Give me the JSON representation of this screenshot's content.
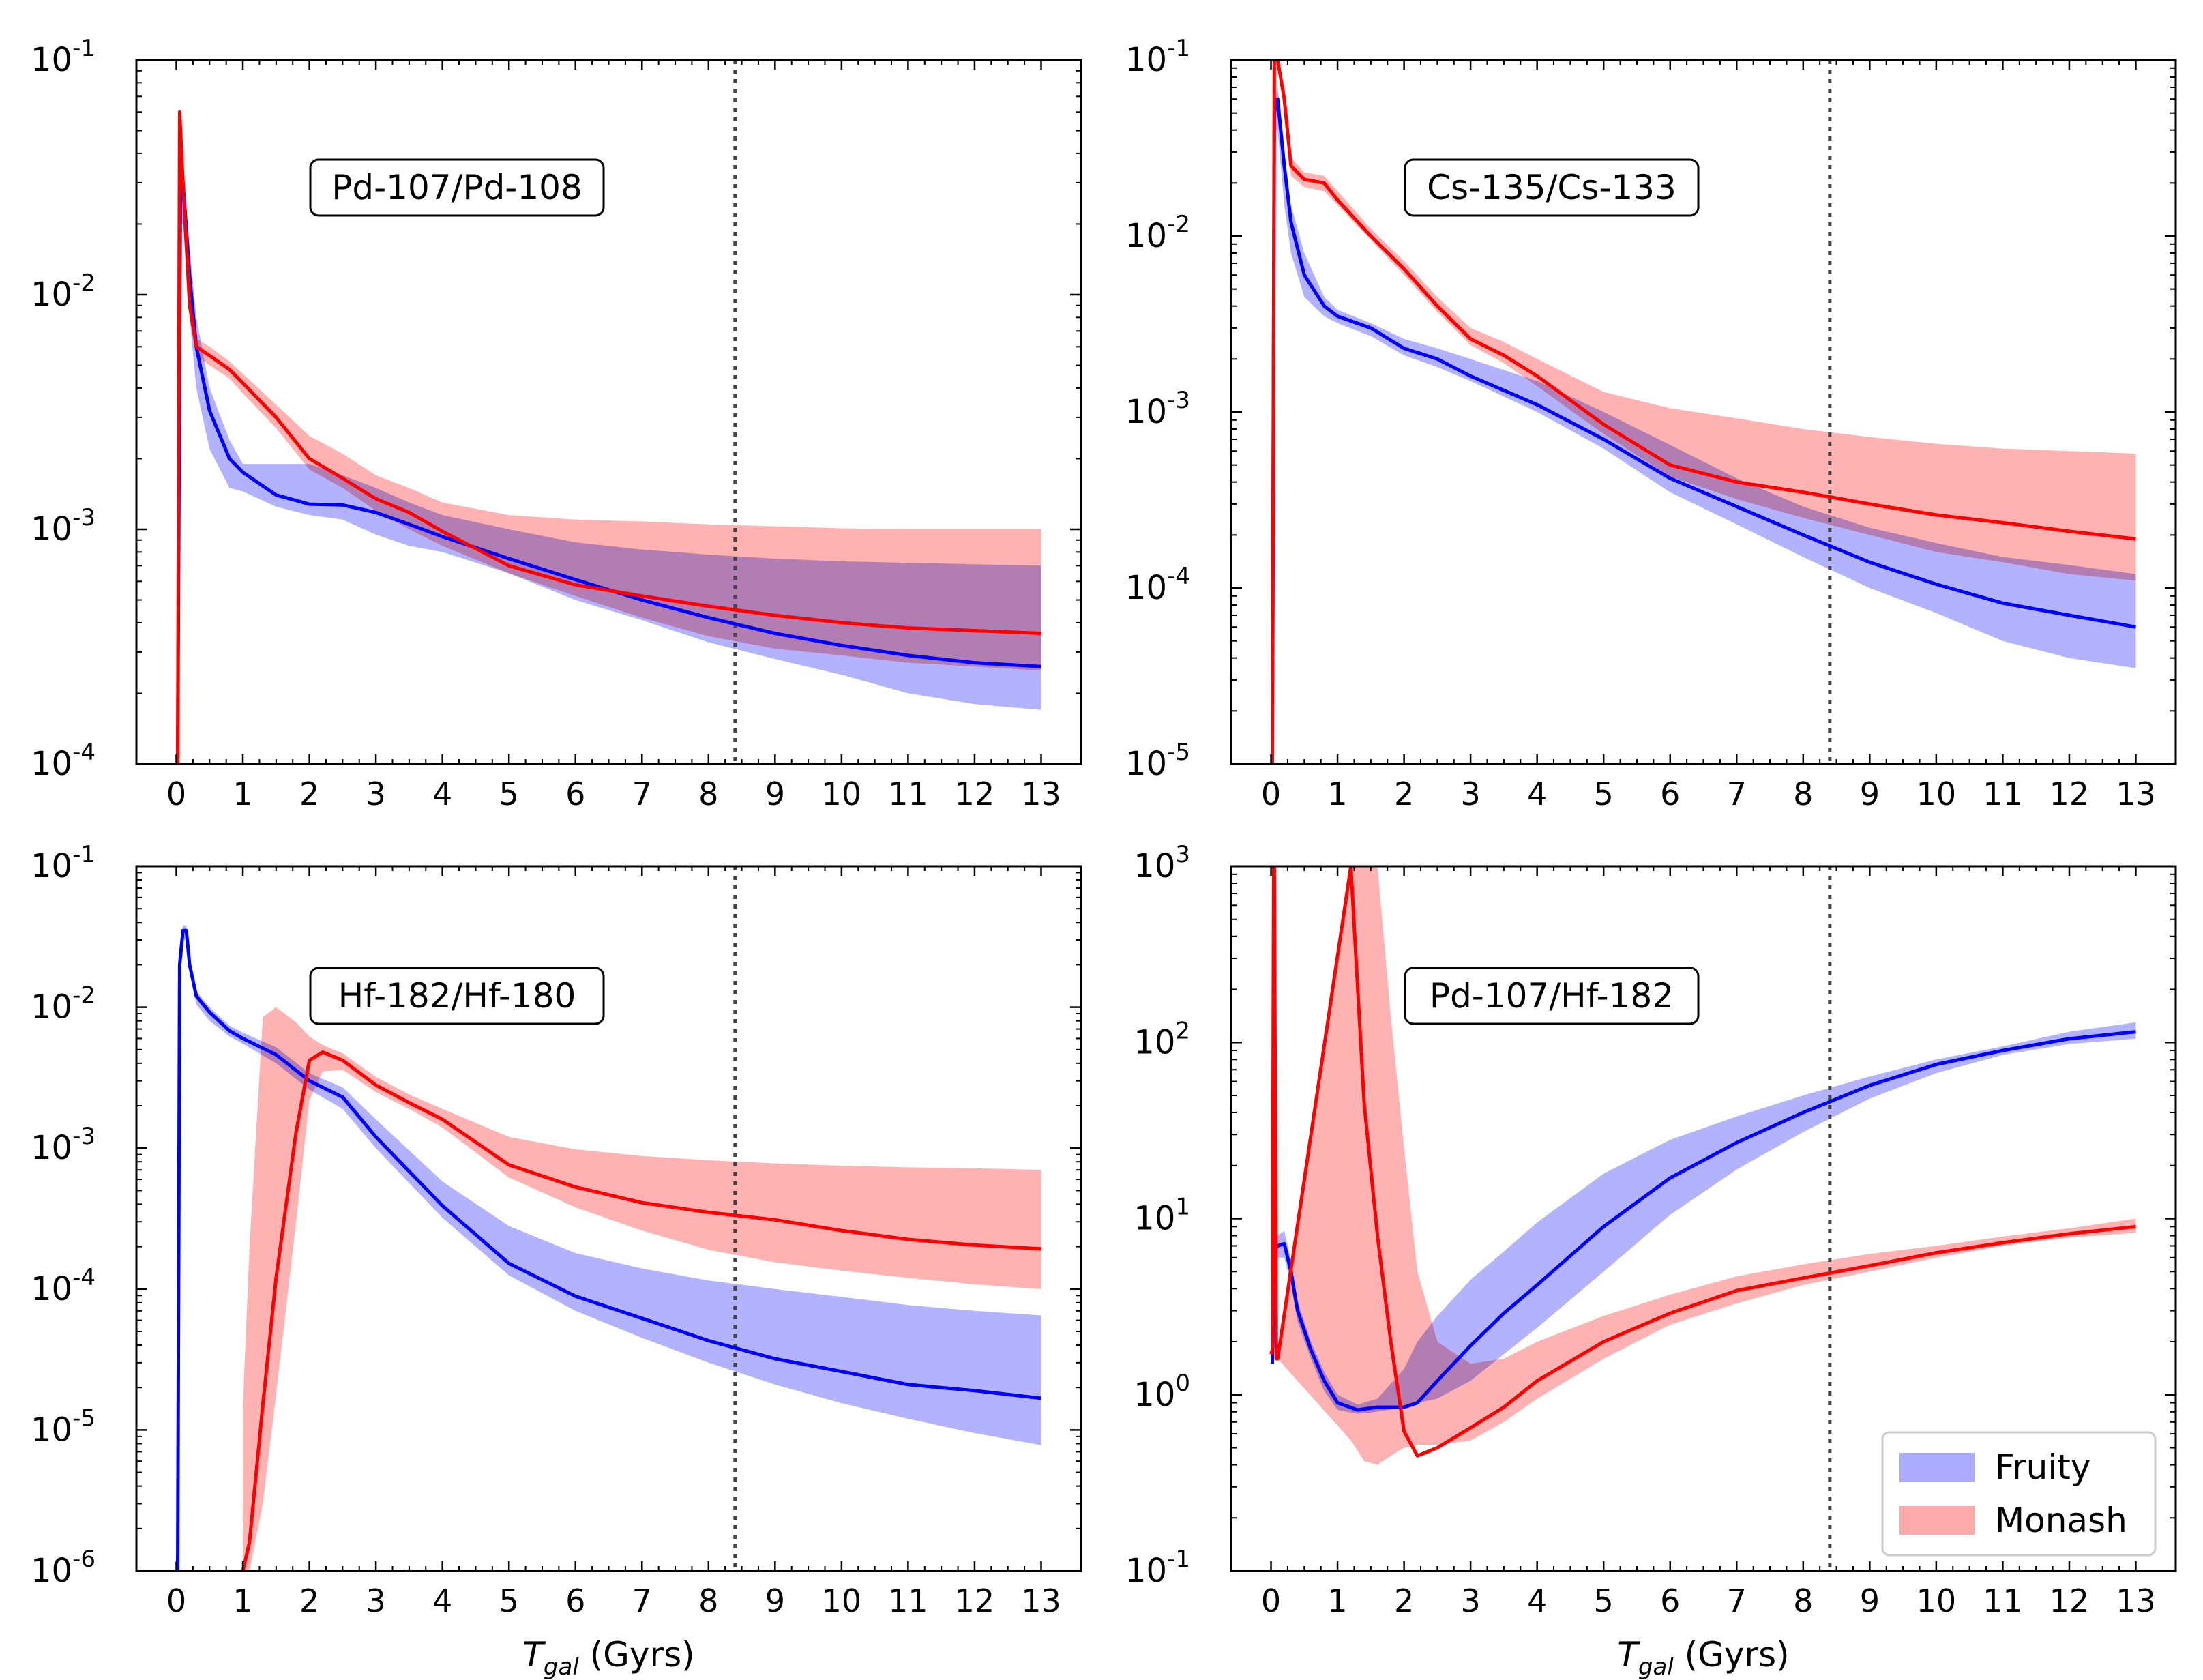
{
  "figure": {
    "legend": [
      {
        "label": "Fruity",
        "color": "#0000ff",
        "band_color": "#aaaaff"
      },
      {
        "label": "Monash",
        "color": "#ff0000",
        "band_color": "#ffaaaa"
      }
    ],
    "vline_x": 8.4,
    "x_ticks": [
      0,
      1,
      2,
      3,
      4,
      5,
      6,
      7,
      8,
      9,
      10,
      11,
      12,
      13
    ],
    "xlabel_main": "T",
    "xlabel_sub": "gal",
    "xlabel_unit": " (Gyrs)"
  },
  "chart_data": [
    {
      "type": "line",
      "title": "Pd-107/Pd-108",
      "xlabel": "",
      "ylabel": "",
      "xlim": [
        -0.6,
        13.6
      ],
      "ylim_exp": [
        -4,
        -1
      ],
      "yscale": "log",
      "y_tick_labels": [
        "10",
        "10",
        "10",
        "10"
      ],
      "y_tick_exps": [
        "-4",
        "-3",
        "-2",
        "-1"
      ],
      "series": [
        {
          "name": "Fruity",
          "x": [
            0.02,
            0.06,
            0.1,
            0.2,
            0.3,
            0.5,
            0.8,
            1.0,
            1.5,
            2.0,
            2.5,
            3.0,
            3.5,
            4.0,
            5.0,
            6.0,
            7.0,
            8.0,
            9.0,
            10.0,
            11.0,
            12.0,
            13.0
          ],
          "y": [
            0.0001,
            0.025,
            0.03,
            0.012,
            0.006,
            0.0032,
            0.002,
            0.00175,
            0.0014,
            0.00128,
            0.00127,
            0.00118,
            0.00105,
            0.00093,
            0.00075,
            0.00061,
            0.0005,
            0.00042,
            0.00036,
            0.00032,
            0.00029,
            0.00027,
            0.00026
          ],
          "band_low": [
            0.0001,
            0.02,
            0.02,
            0.008,
            0.004,
            0.0022,
            0.0015,
            0.00145,
            0.00125,
            0.00115,
            0.0011,
            0.00095,
            0.00085,
            0.0008,
            0.00065,
            0.0005,
            0.00041,
            0.00033,
            0.00028,
            0.00024,
            0.0002,
            0.00018,
            0.00017
          ],
          "band_high": [
            0.0001,
            0.035,
            0.035,
            0.016,
            0.008,
            0.004,
            0.0024,
            0.0019,
            0.0019,
            0.0019,
            0.0017,
            0.0015,
            0.0013,
            0.00115,
            0.001,
            0.00088,
            0.00082,
            0.00078,
            0.00075,
            0.00073,
            0.00072,
            0.00071,
            0.0007
          ]
        },
        {
          "name": "Monash",
          "x": [
            0.0,
            0.02,
            0.05,
            0.1,
            0.2,
            0.3,
            0.5,
            0.8,
            1.0,
            1.5,
            2.0,
            2.5,
            3.0,
            3.5,
            4.0,
            5.0,
            6.0,
            7.0,
            8.0,
            9.0,
            10.0,
            11.0,
            12.0,
            13.0
          ],
          "y": [
            0.0001,
            0.0001,
            0.06,
            0.03,
            0.009,
            0.006,
            0.0055,
            0.0048,
            0.0042,
            0.003,
            0.002,
            0.00165,
            0.00135,
            0.00118,
            0.00098,
            0.0007,
            0.00058,
            0.00052,
            0.00047,
            0.00043,
            0.0004,
            0.00038,
            0.00037,
            0.00036
          ],
          "band_low": [
            0.0001,
            0.0001,
            0.05,
            0.025,
            0.008,
            0.0055,
            0.005,
            0.0044,
            0.0038,
            0.0027,
            0.0018,
            0.0015,
            0.0012,
            0.001,
            0.00085,
            0.00065,
            0.00052,
            0.00042,
            0.00035,
            0.00031,
            0.00029,
            0.00027,
            0.00026,
            0.00025
          ],
          "band_high": [
            0.0001,
            0.0001,
            0.065,
            0.032,
            0.01,
            0.0065,
            0.006,
            0.0052,
            0.0046,
            0.0034,
            0.0025,
            0.0021,
            0.0017,
            0.0015,
            0.0013,
            0.00115,
            0.0011,
            0.00108,
            0.00105,
            0.00103,
            0.00101,
            0.001,
            0.001,
            0.001
          ]
        }
      ]
    },
    {
      "type": "line",
      "title": "Cs-135/Cs-133",
      "xlabel": "",
      "ylabel": "",
      "xlim": [
        -0.6,
        13.6
      ],
      "ylim_exp": [
        -5,
        -1
      ],
      "yscale": "log",
      "y_tick_labels": [
        "10",
        "10",
        "10",
        "10",
        "10"
      ],
      "y_tick_exps": [
        "-5",
        "-4",
        "-3",
        "-2",
        "-1"
      ],
      "series": [
        {
          "name": "Fruity",
          "x": [
            0.0,
            0.02,
            0.05,
            0.1,
            0.2,
            0.3,
            0.5,
            0.8,
            1.0,
            1.5,
            2.0,
            2.5,
            3.0,
            4.0,
            5.0,
            6.0,
            7.0,
            8.0,
            9.0,
            10.0,
            11.0,
            12.0,
            13.0
          ],
          "y": [
            1e-05,
            1e-05,
            0.05,
            0.06,
            0.025,
            0.012,
            0.006,
            0.004,
            0.0035,
            0.003,
            0.0023,
            0.002,
            0.0016,
            0.0011,
            0.0007,
            0.00042,
            0.00029,
            0.0002,
            0.00014,
            0.000105,
            8.2e-05,
            7e-05,
            6e-05
          ],
          "band_low": [
            1e-05,
            1e-05,
            0.04,
            0.04,
            0.015,
            0.008,
            0.0045,
            0.0035,
            0.0032,
            0.0027,
            0.0021,
            0.0018,
            0.0015,
            0.001,
            0.00062,
            0.00035,
            0.00023,
            0.00015,
            0.0001,
            7.2e-05,
            5e-05,
            4e-05,
            3.5e-05
          ],
          "band_high": [
            1e-05,
            1e-05,
            0.06,
            0.07,
            0.03,
            0.015,
            0.008,
            0.0045,
            0.0038,
            0.0032,
            0.0026,
            0.0023,
            0.002,
            0.0015,
            0.001,
            0.00065,
            0.00042,
            0.00029,
            0.00022,
            0.00018,
            0.00015,
            0.000135,
            0.00012
          ]
        },
        {
          "name": "Monash",
          "x": [
            0.0,
            0.02,
            0.05,
            0.1,
            0.2,
            0.3,
            0.5,
            0.8,
            1.0,
            1.5,
            2.0,
            2.5,
            3.0,
            3.5,
            4.0,
            5.0,
            6.0,
            7.0,
            8.0,
            9.0,
            10.0,
            11.0,
            12.0,
            13.0
          ],
          "y": [
            1e-05,
            1e-05,
            0.1,
            0.1,
            0.06,
            0.025,
            0.021,
            0.02,
            0.016,
            0.01,
            0.0065,
            0.004,
            0.0026,
            0.0021,
            0.0016,
            0.00085,
            0.0005,
            0.0004,
            0.00035,
            0.0003,
            0.00026,
            0.000235,
            0.00021,
            0.00019
          ],
          "band_low": [
            1e-05,
            1e-05,
            0.1,
            0.1,
            0.05,
            0.022,
            0.019,
            0.018,
            0.015,
            0.0095,
            0.006,
            0.0037,
            0.0024,
            0.0019,
            0.0014,
            0.00075,
            0.00043,
            0.00032,
            0.00025,
            0.0002,
            0.00016,
            0.00014,
            0.00012,
            0.00011
          ],
          "band_high": [
            1e-05,
            1e-05,
            0.1,
            0.1,
            0.07,
            0.028,
            0.023,
            0.022,
            0.018,
            0.011,
            0.0072,
            0.0045,
            0.003,
            0.0025,
            0.002,
            0.0013,
            0.00105,
            0.00092,
            0.0008,
            0.00072,
            0.00066,
            0.00062,
            0.0006,
            0.00058
          ]
        }
      ]
    },
    {
      "type": "line",
      "title": "Hf-182/Hf-180",
      "xlabel": "T_gal (Gyrs)",
      "ylabel": "",
      "xlim": [
        -0.6,
        13.6
      ],
      "ylim_exp": [
        -6,
        -1
      ],
      "yscale": "log",
      "y_tick_labels": [
        "10",
        "10",
        "10",
        "10",
        "10",
        "10"
      ],
      "y_tick_exps": [
        "-6",
        "-5",
        "-4",
        "-3",
        "-2",
        "-1"
      ],
      "series": [
        {
          "name": "Fruity",
          "x": [
            0.0,
            0.02,
            0.05,
            0.1,
            0.15,
            0.2,
            0.3,
            0.5,
            0.8,
            1.0,
            1.5,
            2.0,
            2.5,
            3.0,
            4.0,
            5.0,
            6.0,
            7.0,
            8.0,
            9.0,
            10.0,
            11.0,
            12.0,
            13.0
          ],
          "y": [
            1e-06,
            1e-06,
            0.02,
            0.035,
            0.035,
            0.02,
            0.012,
            0.0092,
            0.0068,
            0.006,
            0.0046,
            0.003,
            0.0023,
            0.0012,
            0.00039,
            0.000152,
            8.9e-05,
            6.2e-05,
            4.3e-05,
            3.2e-05,
            2.6e-05,
            2.1e-05,
            1.9e-05,
            1.68e-05
          ],
          "band_low": [
            1e-06,
            1e-06,
            0.018,
            0.03,
            0.03,
            0.018,
            0.0105,
            0.008,
            0.0062,
            0.0055,
            0.004,
            0.0026,
            0.0019,
            0.001,
            0.00032,
            0.000125,
            7e-05,
            4.5e-05,
            3e-05,
            2.1e-05,
            1.55e-05,
            1.2e-05,
            9.5e-06,
            7.8e-06
          ],
          "band_high": [
            1e-06,
            1e-06,
            0.022,
            0.038,
            0.038,
            0.022,
            0.013,
            0.01,
            0.0074,
            0.0066,
            0.0052,
            0.0034,
            0.0027,
            0.0016,
            0.00058,
            0.00028,
            0.00018,
            0.00014,
            0.000115,
            0.0001,
            8.8e-05,
            7.7e-05,
            7e-05,
            6.5e-05
          ]
        },
        {
          "name": "Monash",
          "x": [
            1.0,
            1.1,
            1.3,
            1.5,
            1.8,
            2.0,
            2.2,
            2.5,
            3.0,
            3.5,
            4.0,
            5.0,
            6.0,
            7.0,
            8.0,
            9.0,
            10.0,
            11.0,
            12.0,
            13.0
          ],
          "y": [
            1e-06,
            1.6e-06,
            1.5e-05,
            0.00012,
            0.0013,
            0.0042,
            0.0048,
            0.0042,
            0.0028,
            0.0021,
            0.0016,
            0.00076,
            0.00053,
            0.00041,
            0.00035,
            0.00031,
            0.00026,
            0.000225,
            0.000205,
            0.000193
          ],
          "band_low": [
            1e-06,
            1e-06,
            3e-06,
            1.8e-05,
            0.0003,
            0.0022,
            0.0035,
            0.0036,
            0.0025,
            0.0019,
            0.0014,
            0.00062,
            0.00038,
            0.00026,
            0.00019,
            0.000155,
            0.000135,
            0.00012,
            0.000108,
            0.0001
          ],
          "band_high": [
            1.5e-05,
            0.0002,
            0.0085,
            0.01,
            0.0078,
            0.0062,
            0.0054,
            0.0047,
            0.0032,
            0.0024,
            0.0019,
            0.0012,
            0.00098,
            0.00088,
            0.00082,
            0.00078,
            0.00075,
            0.00073,
            0.00072,
            0.0007
          ]
        }
      ]
    },
    {
      "type": "line",
      "title": "Pd-107/Hf-182",
      "xlabel": "T_gal (Gyrs)",
      "ylabel": "",
      "xlim": [
        -0.6,
        13.6
      ],
      "ylim_exp": [
        -1,
        3
      ],
      "yscale": "log",
      "y_tick_labels": [
        "10",
        "10",
        "10",
        "10",
        "10"
      ],
      "y_tick_exps": [
        "-1",
        "0",
        "1",
        "2",
        "3"
      ],
      "series": [
        {
          "name": "Fruity",
          "x": [
            0.02,
            0.05,
            0.1,
            0.2,
            0.3,
            0.4,
            0.6,
            0.8,
            1.0,
            1.3,
            1.6,
            2.0,
            2.2,
            2.5,
            3.0,
            3.5,
            4.0,
            5.0,
            6.0,
            7.0,
            8.0,
            9.0,
            10.0,
            11.0,
            12.0,
            13.0
          ],
          "y": [
            1.5,
            6.5,
            7.0,
            7.2,
            5.0,
            3.0,
            1.8,
            1.2,
            0.9,
            0.82,
            0.85,
            0.85,
            0.9,
            1.2,
            1.9,
            2.9,
            4.2,
            9.0,
            17.0,
            27.0,
            40.0,
            57.0,
            75.0,
            90.0,
            105.0,
            115.0
          ],
          "band_low": [
            1.5,
            5.5,
            6.0,
            6.0,
            4.2,
            2.6,
            1.6,
            1.05,
            0.82,
            0.78,
            0.8,
            0.85,
            0.9,
            0.95,
            1.2,
            1.7,
            2.4,
            5.0,
            10.5,
            19.0,
            31.0,
            48.0,
            67.0,
            85.0,
            98.0,
            105.0
          ],
          "band_high": [
            1.5,
            7.5,
            8.0,
            8.5,
            5.8,
            3.4,
            2.0,
            1.35,
            1.0,
            0.88,
            0.95,
            1.4,
            2.0,
            2.8,
            4.5,
            6.5,
            9.5,
            18.0,
            28.0,
            38.0,
            50.0,
            64.0,
            80.0,
            95.0,
            115.0,
            130.0
          ]
        },
        {
          "name": "Monash",
          "x": [
            0.0,
            0.02,
            0.04,
            0.05,
            0.08,
            0.1,
            1.2,
            1.4,
            1.6,
            1.8,
            2.0,
            2.2,
            2.5,
            3.0,
            3.5,
            4.0,
            5.0,
            6.0,
            7.0,
            8.0,
            9.0,
            10.0,
            11.0,
            12.0,
            13.0
          ],
          "y": [
            1.7,
            1.8,
            1000,
            1000,
            1.6,
            1.6,
            1000,
            45.0,
            8.0,
            2.0,
            0.62,
            0.45,
            0.5,
            0.65,
            0.85,
            1.2,
            2.0,
            2.9,
            3.9,
            4.6,
            5.4,
            6.4,
            7.3,
            8.2,
            9.0
          ],
          "band_low": [
            1.7,
            1.8,
            1000,
            1000,
            1.6,
            1.6,
            0.55,
            0.42,
            0.4,
            0.45,
            0.5,
            0.52,
            0.52,
            0.55,
            0.7,
            0.95,
            1.6,
            2.5,
            3.3,
            4.2,
            5.0,
            6.0,
            7.0,
            7.8,
            8.3
          ],
          "band_high": [
            1.7,
            1.8,
            1000,
            1000,
            1.6,
            1.6,
            1000,
            1000,
            1000,
            140.0,
            25.0,
            5.0,
            2.0,
            1.5,
            1.6,
            2.0,
            2.8,
            3.7,
            4.7,
            5.5,
            6.3,
            7.0,
            7.9,
            8.8,
            10.0
          ]
        }
      ]
    }
  ]
}
